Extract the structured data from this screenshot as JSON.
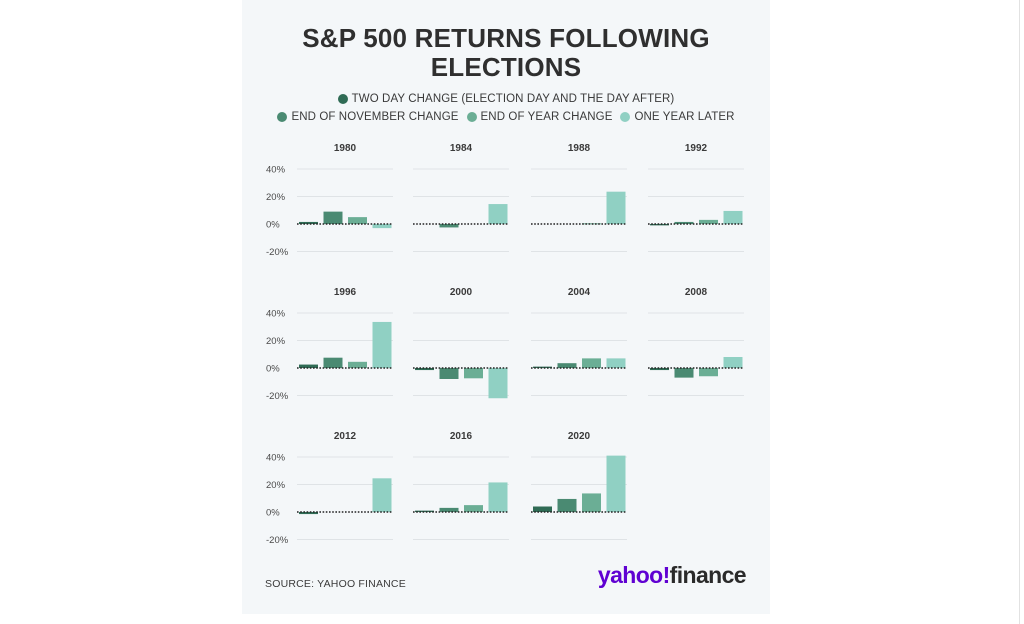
{
  "title": "S&P 500 RETURNS FOLLOWING ELECTIONS",
  "legend": [
    {
      "label": "TWO DAY CHANGE (ELECTION DAY AND THE DAY AFTER)",
      "color": "#2f6b55"
    },
    {
      "label": "END OF NOVEMBER CHANGE",
      "color": "#4a8a72"
    },
    {
      "label": "END OF YEAR CHANGE",
      "color": "#6bae95"
    },
    {
      "label": "ONE YEAR LATER",
      "color": "#90d0c3"
    }
  ],
  "source": "SOURCE: YAHOO FINANCE",
  "logo": {
    "part1": "yahoo!",
    "part2": "finance"
  },
  "chart_data": {
    "type": "bar",
    "layout": "small-multiples",
    "ylim": [
      -20,
      40
    ],
    "yticks": [
      "40%",
      "20%",
      "0%",
      "-20%"
    ],
    "series_names": [
      "TWO DAY CHANGE (ELECTION DAY AND THE DAY AFTER)",
      "END OF NOVEMBER CHANGE",
      "END OF YEAR CHANGE",
      "ONE YEAR LATER"
    ],
    "panels": [
      {
        "year": "1980",
        "values": [
          1.5,
          9,
          5,
          -3
        ]
      },
      {
        "year": "1984",
        "values": [
          0,
          -2.5,
          0,
          14.5
        ]
      },
      {
        "year": "1988",
        "values": [
          0,
          0,
          0.5,
          23.5
        ]
      },
      {
        "year": "1992",
        "values": [
          -1,
          1.5,
          3,
          9.5
        ]
      },
      {
        "year": "1996",
        "values": [
          2.5,
          7.5,
          4.5,
          33.5
        ]
      },
      {
        "year": "2000",
        "values": [
          -1.5,
          -8,
          -7.5,
          -22
        ]
      },
      {
        "year": "2004",
        "values": [
          1,
          3.5,
          7,
          7
        ]
      },
      {
        "year": "2008",
        "values": [
          -1.5,
          -7,
          -6,
          8
        ]
      },
      {
        "year": "2012",
        "values": [
          -1.5,
          0,
          0,
          24.5
        ]
      },
      {
        "year": "2016",
        "values": [
          1,
          3,
          5,
          21.5
        ]
      },
      {
        "year": "2020",
        "values": [
          4,
          9.5,
          13.5,
          41
        ]
      }
    ]
  }
}
